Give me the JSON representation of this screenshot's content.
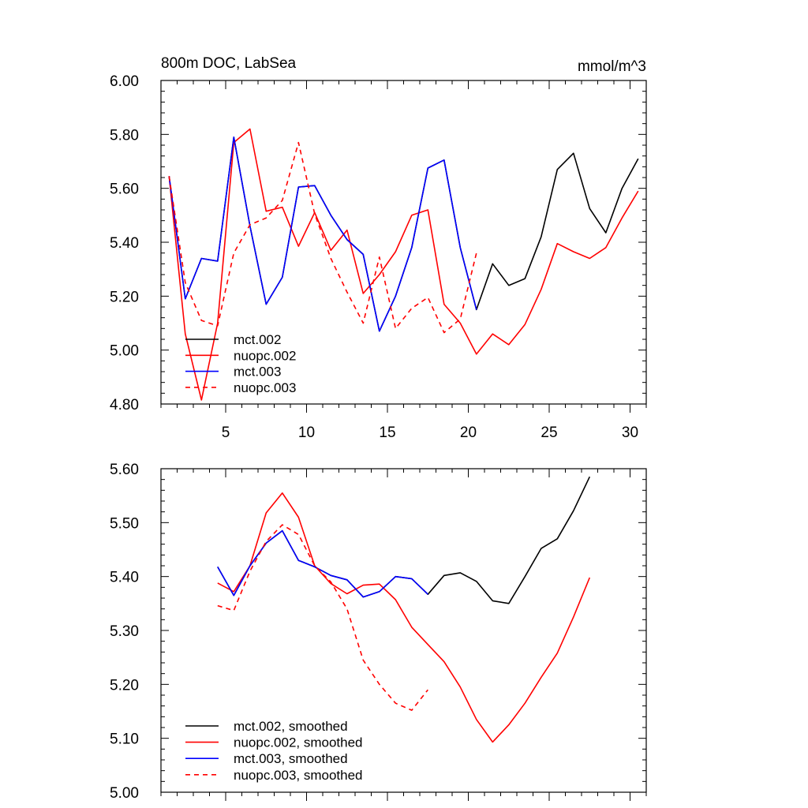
{
  "chart_data": [
    {
      "type": "line",
      "title": "800m DOC, LabSea",
      "units": "mmol/m^3",
      "xlim": [
        1,
        31
      ],
      "ylim": [
        4.8,
        6.0
      ],
      "x_ticks": [
        5,
        10,
        15,
        20,
        25,
        30
      ],
      "x_tick_labels": [
        "5",
        "10",
        "15",
        "20",
        "25",
        "30"
      ],
      "y_ticks": [
        4.8,
        5.0,
        5.2,
        5.4,
        5.6,
        5.8,
        6.0
      ],
      "y_tick_labels": [
        "4.80",
        "5.00",
        "5.20",
        "5.40",
        "5.60",
        "5.80",
        "6.00"
      ],
      "legend": "bottom-left",
      "series": [
        {
          "name": "mct.002",
          "color": "#000000",
          "dash": "solid",
          "x": [
            1.5,
            2.5,
            3.5,
            4.5,
            5.5,
            6.5,
            7.5,
            8.5,
            9.5,
            10.5,
            11.5,
            12.5,
            13.5,
            14.5,
            15.5,
            16.5,
            17.5,
            18.5,
            19.5,
            20.5,
            21.5,
            22.5,
            23.5,
            24.5,
            25.5,
            26.5,
            27.5,
            28.5,
            29.5,
            30.5
          ],
          "values": [
            5.645,
            5.19,
            5.34,
            5.33,
            5.79,
            5.46,
            5.17,
            5.27,
            5.605,
            5.61,
            5.5,
            5.41,
            5.355,
            5.07,
            5.2,
            5.38,
            5.675,
            5.705,
            5.38,
            5.15,
            5.32,
            5.24,
            5.265,
            5.42,
            5.67,
            5.73,
            5.525,
            5.435,
            5.6,
            5.71
          ]
        },
        {
          "name": "nuopc.002",
          "color": "#ff0000",
          "dash": "solid",
          "x": [
            1.5,
            2.5,
            3.5,
            4.5,
            5.5,
            6.5,
            7.5,
            8.5,
            9.5,
            10.5,
            11.5,
            12.5,
            13.5,
            14.5,
            15.5,
            16.5,
            17.5,
            18.5,
            19.5,
            20.5,
            21.5,
            22.5,
            23.5,
            24.5,
            25.5,
            26.5,
            27.5,
            28.5,
            29.5,
            30.5
          ],
          "values": [
            5.645,
            5.06,
            4.815,
            5.1,
            5.77,
            5.82,
            5.515,
            5.53,
            5.385,
            5.51,
            5.37,
            5.445,
            5.21,
            5.28,
            5.365,
            5.5,
            5.52,
            5.17,
            5.1,
            4.985,
            5.06,
            5.02,
            5.095,
            5.225,
            5.395,
            5.365,
            5.34,
            5.38,
            5.49,
            5.59
          ]
        },
        {
          "name": "mct.003",
          "color": "#0000ff",
          "dash": "solid",
          "x": [
            1.5,
            2.5,
            3.5,
            4.5,
            5.5,
            6.5,
            7.5,
            8.5,
            9.5,
            10.5,
            11.5,
            12.5,
            13.5,
            14.5,
            15.5,
            16.5,
            17.5,
            18.5,
            19.5,
            20.5
          ],
          "values": [
            5.645,
            5.19,
            5.34,
            5.33,
            5.79,
            5.46,
            5.17,
            5.27,
            5.605,
            5.61,
            5.5,
            5.41,
            5.355,
            5.07,
            5.2,
            5.38,
            5.675,
            5.705,
            5.38,
            5.15
          ]
        },
        {
          "name": "nuopc.003",
          "color": "#ff0000",
          "dash": "dashed",
          "x": [
            1.5,
            2.5,
            3.5,
            4.5,
            5.5,
            6.5,
            7.5,
            8.5,
            9.5,
            10.5,
            11.5,
            12.5,
            13.5,
            14.5,
            15.5,
            16.5,
            17.5,
            18.5,
            19.5,
            20.5
          ],
          "values": [
            5.645,
            5.25,
            5.11,
            5.09,
            5.36,
            5.465,
            5.49,
            5.555,
            5.77,
            5.505,
            5.34,
            5.215,
            5.1,
            5.345,
            5.08,
            5.155,
            5.195,
            5.065,
            5.115,
            5.36
          ]
        }
      ]
    },
    {
      "type": "line",
      "title": "",
      "units": "",
      "xlim": [
        1,
        31
      ],
      "ylim": [
        5.0,
        5.6
      ],
      "x_ticks": [
        5,
        10,
        15,
        20,
        25,
        30
      ],
      "x_tick_labels": [
        "",
        "",
        "",
        "",
        "",
        ""
      ],
      "y_ticks": [
        5.0,
        5.1,
        5.2,
        5.3,
        5.4,
        5.5,
        5.6
      ],
      "y_tick_labels": [
        "5.00",
        "5.10",
        "5.20",
        "5.30",
        "5.40",
        "5.50",
        "5.60"
      ],
      "legend": "bottom-left",
      "series": [
        {
          "name": "mct.002, smoothed",
          "color": "#000000",
          "dash": "solid",
          "x": [
            4.5,
            5.5,
            6.5,
            7.5,
            8.5,
            9.5,
            10.5,
            11.5,
            12.5,
            13.5,
            14.5,
            15.5,
            16.5,
            17.5,
            18.5,
            19.5,
            20.5,
            21.5,
            22.5,
            23.5,
            24.5,
            25.5,
            26.5,
            27.5
          ],
          "values": [
            5.418,
            5.365,
            5.42,
            5.462,
            5.485,
            5.43,
            5.418,
            5.402,
            5.394,
            5.362,
            5.372,
            5.4,
            5.396,
            5.367,
            5.402,
            5.407,
            5.391,
            5.355,
            5.35,
            5.4,
            5.452,
            5.47,
            5.522,
            5.585
          ]
        },
        {
          "name": "nuopc.002, smoothed",
          "color": "#ff0000",
          "dash": "solid",
          "x": [
            4.5,
            5.5,
            6.5,
            7.5,
            8.5,
            9.5,
            10.5,
            11.5,
            12.5,
            13.5,
            14.5,
            15.5,
            16.5,
            17.5,
            18.5,
            19.5,
            20.5,
            21.5,
            22.5,
            23.5,
            24.5,
            25.5,
            26.5,
            27.5
          ],
          "values": [
            5.388,
            5.372,
            5.42,
            5.518,
            5.555,
            5.51,
            5.42,
            5.387,
            5.368,
            5.384,
            5.386,
            5.357,
            5.306,
            5.274,
            5.242,
            5.195,
            5.135,
            5.093,
            5.125,
            5.165,
            5.213,
            5.258,
            5.325,
            5.398
          ]
        },
        {
          "name": "mct.003, smoothed",
          "color": "#0000ff",
          "dash": "solid",
          "x": [
            4.5,
            5.5,
            6.5,
            7.5,
            8.5,
            9.5,
            10.5,
            11.5,
            12.5,
            13.5,
            14.5,
            15.5,
            16.5,
            17.5
          ],
          "values": [
            5.418,
            5.365,
            5.42,
            5.462,
            5.485,
            5.43,
            5.418,
            5.402,
            5.394,
            5.362,
            5.372,
            5.4,
            5.396,
            5.367
          ]
        },
        {
          "name": "nuopc.003, smoothed",
          "color": "#ff0000",
          "dash": "dashed",
          "x": [
            4.5,
            5.5,
            6.5,
            7.5,
            8.5,
            9.5,
            10.5,
            11.5,
            12.5,
            13.5,
            14.5,
            15.5,
            16.5,
            17.5
          ],
          "values": [
            5.346,
            5.337,
            5.41,
            5.465,
            5.496,
            5.478,
            5.42,
            5.39,
            5.34,
            5.245,
            5.2,
            5.165,
            5.152,
            5.19
          ]
        }
      ]
    }
  ]
}
